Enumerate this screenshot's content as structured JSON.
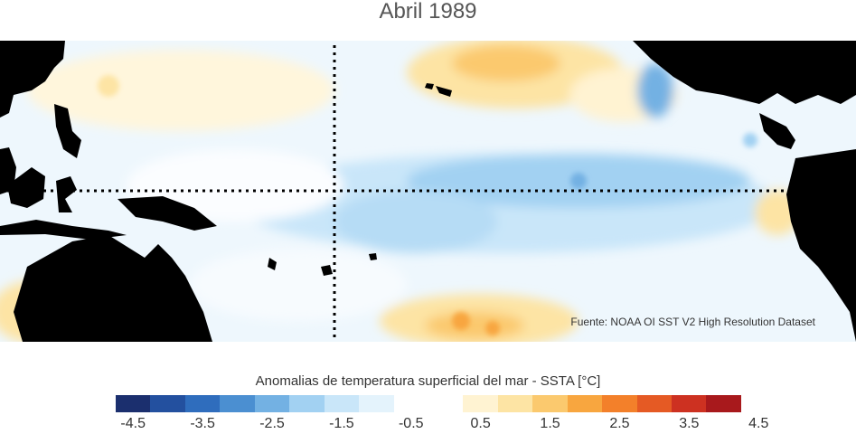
{
  "title": "Abril 1989",
  "source_note": "Fuente: NOAA OI SST V2 High Resolution Dataset",
  "colorbar": {
    "label": "Anomalias de temperatura superficial del mar - SSTA  [°C]",
    "tick_labels": [
      "-4.5",
      "-3.5",
      "-2.5",
      "-1.5",
      "-0.5",
      "0.5",
      "1.5",
      "2.5",
      "3.5",
      "4.5"
    ],
    "colors": [
      "#1b2f6e",
      "#23509f",
      "#2f6dbd",
      "#4b8fd1",
      "#73b1e3",
      "#a2d1f2",
      "#c9e6f9",
      "#e4f3fc",
      "#ffffff",
      "#ffffff",
      "#fff3d2",
      "#fde4a4",
      "#fbc96e",
      "#f8a63f",
      "#f3802a",
      "#e55a24",
      "#cd3121",
      "#a8191c"
    ]
  },
  "map": {
    "land_color": "#000000",
    "background_anomaly_color": "#e4f3fc",
    "equator_line": "dotted",
    "dateline_line": "dotted"
  }
}
